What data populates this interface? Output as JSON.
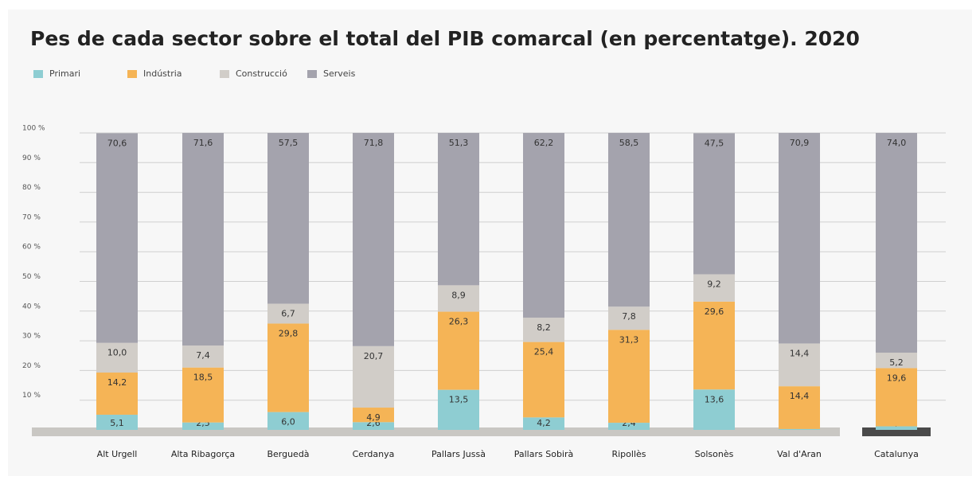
{
  "chart_data": {
    "type": "stacked_bar",
    "title": "Pes de cada sector sobre el total del PIB comarcal (en percentatge). 2020",
    "categories": [
      "Alt Urgell",
      "Alta Ribagorça",
      "Berguedà",
      "Cerdanya",
      "Pallars Jussà",
      "Pallars Sobirà",
      "Ripollès",
      "Solsonès",
      "Val d'Aran",
      "Catalunya"
    ],
    "series": [
      {
        "name": "Primari",
        "color": "#8ecdd2",
        "values": [
          5.1,
          2.5,
          6.0,
          2.6,
          13.5,
          4.2,
          2.4,
          13.6,
          0.3,
          1.2
        ],
        "value_labels": [
          "5,1",
          "2,5",
          "6,0",
          "2,6",
          "13,5",
          "4,2",
          "2,4",
          "13,6",
          "0,3",
          "1,2"
        ]
      },
      {
        "name": "Indústria",
        "color": "#f5b456",
        "values": [
          14.2,
          18.5,
          29.8,
          4.9,
          26.3,
          25.4,
          31.3,
          29.6,
          14.4,
          19.6
        ],
        "value_labels": [
          "14,2",
          "18,5",
          "29,8",
          "4,9",
          "26,3",
          "25,4",
          "31,3",
          "29,6",
          "14,4",
          "19,6"
        ]
      },
      {
        "name": "Construcció",
        "color": "#d1cdc8",
        "values": [
          10.0,
          7.4,
          6.7,
          20.7,
          8.9,
          8.2,
          7.8,
          9.2,
          14.4,
          5.2
        ],
        "value_labels": [
          "10,0",
          "7,4",
          "6,7",
          "20,7",
          "8,9",
          "8,2",
          "7,8",
          "9,2",
          "14,4",
          "5,2"
        ]
      },
      {
        "name": "Serveis",
        "color": "#a4a3ad",
        "values": [
          70.6,
          71.6,
          57.5,
          71.8,
          51.3,
          62.2,
          58.5,
          47.5,
          70.9,
          74.0
        ],
        "value_labels": [
          "70,6",
          "71,6",
          "57,5",
          "71,8",
          "51,3",
          "62,2",
          "58,5",
          "47,5",
          "70,9",
          "74,0"
        ]
      }
    ],
    "ylim": [
      0,
      100
    ],
    "yticks": [
      {
        "value": 10,
        "label": "10 %"
      },
      {
        "value": 20,
        "label": "20 %"
      },
      {
        "value": 30,
        "label": "30 %"
      },
      {
        "value": 40,
        "label": "40 %"
      },
      {
        "value": 50,
        "label": "50 %"
      },
      {
        "value": 60,
        "label": "60 %"
      },
      {
        "value": 70,
        "label": "70 %"
      },
      {
        "value": 80,
        "label": "80 %"
      },
      {
        "value": 90,
        "label": "90 %"
      },
      {
        "value": 100,
        "label": "100 %"
      }
    ],
    "grid": true,
    "legend": "top-left"
  }
}
